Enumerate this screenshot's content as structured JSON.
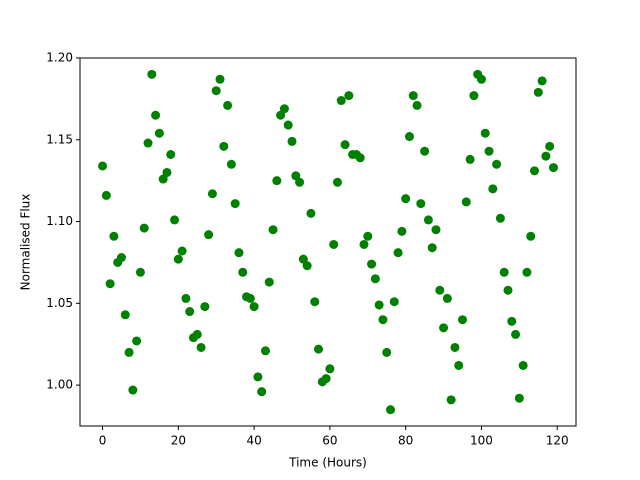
{
  "chart_data": {
    "type": "scatter",
    "xlabel": "Time (Hours)",
    "ylabel": "Normalised Flux",
    "color": "#008000",
    "x": [
      0,
      1,
      2,
      3,
      4,
      5,
      6,
      7,
      8,
      9,
      10,
      11,
      12,
      13,
      14,
      15,
      16,
      17,
      18,
      19,
      20,
      21,
      22,
      23,
      24,
      25,
      26,
      27,
      28,
      29,
      30,
      31,
      32,
      33,
      34,
      35,
      36,
      37,
      38,
      39,
      40,
      41,
      42,
      43,
      44,
      45,
      46,
      47,
      48,
      49,
      50,
      51,
      52,
      53,
      54,
      55,
      56,
      57,
      58,
      59,
      60,
      61,
      62,
      63,
      64,
      65,
      66,
      67,
      68,
      69,
      70,
      71,
      72,
      73,
      74,
      75,
      76,
      77,
      78,
      79,
      80,
      81,
      82,
      83,
      84,
      85,
      86,
      87,
      88,
      89,
      90,
      91,
      92,
      93,
      94,
      95,
      96,
      97,
      98,
      99,
      100,
      101,
      102,
      103,
      104,
      105,
      106,
      107,
      108,
      109,
      110,
      111,
      112,
      113,
      114,
      115,
      116,
      117,
      118,
      119
    ],
    "values": [
      1.134,
      1.116,
      1.062,
      1.091,
      1.075,
      1.078,
      1.043,
      1.02,
      0.997,
      1.027,
      1.069,
      1.096,
      1.148,
      1.19,
      1.165,
      1.154,
      1.126,
      1.13,
      1.141,
      1.101,
      1.077,
      1.082,
      1.053,
      1.045,
      1.029,
      1.031,
      1.023,
      1.048,
      1.092,
      1.117,
      1.18,
      1.187,
      1.146,
      1.171,
      1.135,
      1.111,
      1.081,
      1.069,
      1.054,
      1.053,
      1.048,
      1.005,
      0.996,
      1.021,
      1.063,
      1.095,
      1.125,
      1.165,
      1.169,
      1.159,
      1.149,
      1.128,
      1.124,
      1.077,
      1.073,
      1.105,
      1.051,
      1.022,
      1.002,
      1.004,
      1.01,
      1.086,
      1.124,
      1.174,
      1.147,
      1.177,
      1.141,
      1.141,
      1.139,
      1.086,
      1.091,
      1.074,
      1.065,
      1.049,
      1.04,
      1.02,
      0.985,
      1.051,
      1.081,
      1.094,
      1.114,
      1.152,
      1.177,
      1.171,
      1.111,
      1.143,
      1.101,
      1.084,
      1.095,
      1.058,
      1.035,
      1.053,
      0.991,
      1.023,
      1.012,
      1.04,
      1.112,
      1.138,
      1.177,
      1.19,
      1.187,
      1.154,
      1.143,
      1.12,
      1.135,
      1.102,
      1.069,
      1.058,
      1.039,
      1.031,
      0.992,
      1.012,
      1.069,
      1.091,
      1.131,
      1.179,
      1.186,
      1.14,
      1.146,
      1.133
    ],
    "xlim": [
      -5.95,
      124.95
    ],
    "ylim": [
      0.975,
      1.2
    ],
    "xticks": [
      0,
      20,
      40,
      60,
      80,
      100,
      120
    ],
    "yticks": [
      {
        "value": 1.0,
        "label": "1.00"
      },
      {
        "value": 1.05,
        "label": "1.05"
      },
      {
        "value": 1.1,
        "label": "1.10"
      },
      {
        "value": 1.15,
        "label": "1.15"
      },
      {
        "value": 1.2,
        "label": "1.20"
      }
    ],
    "grid": false
  }
}
